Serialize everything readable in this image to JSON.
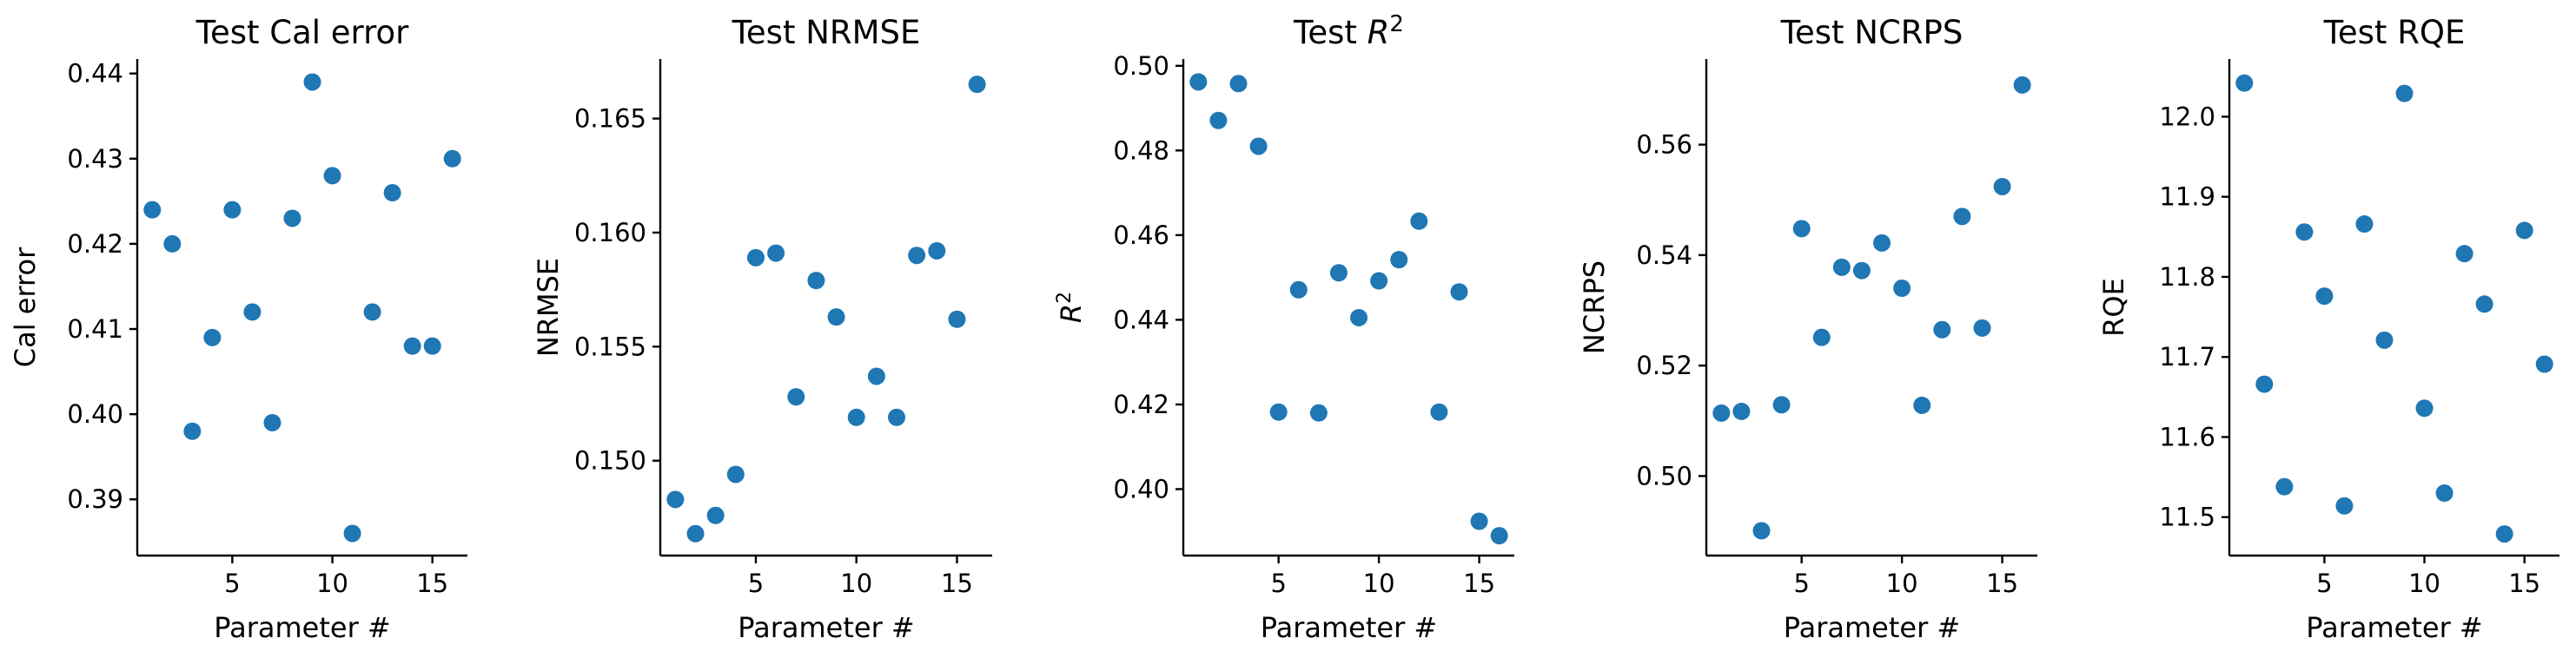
{
  "colors": {
    "marker": "#1f77b4"
  },
  "chart_data": [
    {
      "type": "scatter",
      "title": "Test Cal error",
      "xlabel": "Parameter #",
      "ylabel": "Cal error",
      "xlim": [
        0.25,
        16.75
      ],
      "ylim": [
        0.3834,
        0.4417
      ],
      "xticks": [
        5,
        10,
        15
      ],
      "yticks": [
        0.39,
        0.4,
        0.41,
        0.42,
        0.43,
        0.44
      ],
      "ytick_labels": [
        "0.39",
        "0.40",
        "0.41",
        "0.42",
        "0.43",
        "0.44"
      ],
      "x": [
        1,
        2,
        3,
        4,
        5,
        6,
        7,
        8,
        9,
        10,
        11,
        12,
        13,
        14,
        15,
        16
      ],
      "y": [
        0.424,
        0.42,
        0.398,
        0.409,
        0.424,
        0.412,
        0.399,
        0.423,
        0.439,
        0.428,
        0.386,
        0.412,
        0.426,
        0.408,
        0.408,
        0.43
      ]
    },
    {
      "type": "scatter",
      "title": "Test NRMSE",
      "xlabel": "Parameter #",
      "ylabel": "NRMSE",
      "xlim": [
        0.25,
        16.75
      ],
      "ylim": [
        0.14584,
        0.16761
      ],
      "xticks": [
        5,
        10,
        15
      ],
      "yticks": [
        0.15,
        0.155,
        0.16,
        0.165
      ],
      "ytick_labels": [
        "0.150",
        "0.155",
        "0.160",
        "0.165"
      ],
      "x": [
        1,
        2,
        3,
        4,
        5,
        6,
        7,
        8,
        9,
        10,
        11,
        12,
        13,
        14,
        15,
        16
      ],
      "y": [
        0.1483,
        0.1468,
        0.1476,
        0.1494,
        0.1589,
        0.1591,
        0.1528,
        0.1579,
        0.1563,
        0.1519,
        0.1537,
        0.1519,
        0.159,
        0.1592,
        0.1562,
        0.1665
      ]
    },
    {
      "type": "scatter",
      "title": "Test R^2",
      "title_text": "Test ",
      "title_math": "R",
      "title_sup": "2",
      "xlabel": "Parameter #",
      "ylabel": "R",
      "ylabel_sup": "2",
      "xlim": [
        0.25,
        16.75
      ],
      "ylim": [
        0.3843,
        0.5016
      ],
      "xticks": [
        5,
        10,
        15
      ],
      "yticks": [
        0.4,
        0.42,
        0.44,
        0.46,
        0.48,
        0.5
      ],
      "ytick_labels": [
        "0.40",
        "0.42",
        "0.44",
        "0.46",
        "0.48",
        "0.50"
      ],
      "x": [
        1,
        2,
        3,
        4,
        5,
        6,
        7,
        8,
        9,
        10,
        11,
        12,
        13,
        14,
        15,
        16
      ],
      "y": [
        0.4962,
        0.4871,
        0.4958,
        0.481,
        0.4182,
        0.4471,
        0.418,
        0.4511,
        0.4405,
        0.4492,
        0.4542,
        0.4633,
        0.4182,
        0.4466,
        0.3924,
        0.389
      ]
    },
    {
      "type": "scatter",
      "title": "Test NCRPS",
      "xlabel": "Parameter #",
      "ylabel": "NCRPS",
      "xlim": [
        0.25,
        16.75
      ],
      "ylim": [
        0.4856,
        0.5755
      ],
      "xticks": [
        5,
        10,
        15
      ],
      "yticks": [
        0.5,
        0.52,
        0.54,
        0.56
      ],
      "ytick_labels": [
        "0.50",
        "0.52",
        "0.54",
        "0.56"
      ],
      "x": [
        1,
        2,
        3,
        4,
        5,
        6,
        7,
        8,
        9,
        10,
        11,
        12,
        13,
        14,
        15,
        16
      ],
      "y": [
        0.5114,
        0.5117,
        0.4901,
        0.5129,
        0.5448,
        0.5251,
        0.5378,
        0.5372,
        0.5422,
        0.534,
        0.5128,
        0.5265,
        0.547,
        0.5268,
        0.5524,
        0.5708
      ]
    },
    {
      "type": "scatter",
      "title": "Test RQE",
      "xlabel": "Parameter #",
      "ylabel": "RQE",
      "xlim": [
        0.25,
        16.75
      ],
      "ylim": [
        11.452,
        12.072
      ],
      "xticks": [
        5,
        10,
        15
      ],
      "yticks": [
        11.5,
        11.6,
        11.7,
        11.8,
        11.9,
        12.0
      ],
      "ytick_labels": [
        "11.5",
        "11.6",
        "11.7",
        "11.8",
        "11.9",
        "12.0"
      ],
      "x": [
        1,
        2,
        3,
        4,
        5,
        6,
        7,
        8,
        9,
        10,
        11,
        12,
        13,
        14,
        15,
        16
      ],
      "y": [
        12.042,
        11.666,
        11.538,
        11.856,
        11.776,
        11.514,
        11.866,
        11.721,
        12.029,
        11.636,
        11.53,
        11.829,
        11.766,
        11.479,
        11.858,
        11.691
      ]
    }
  ]
}
